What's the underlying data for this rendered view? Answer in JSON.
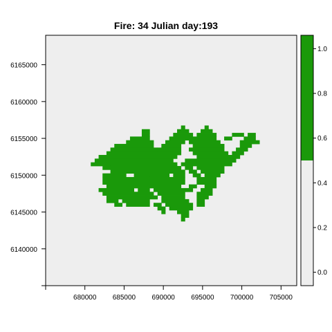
{
  "chart_data": {
    "type": "heatmap",
    "title": "Fire: 34   Julian day:193",
    "xlabel": "",
    "ylabel": "",
    "xlim": [
      675000,
      707000
    ],
    "ylim": [
      6135000,
      6169000
    ],
    "x_ticks": [
      680000,
      685000,
      690000,
      695000,
      700000,
      705000
    ],
    "y_ticks": [
      6140000,
      6145000,
      6150000,
      6155000,
      6160000,
      6165000
    ],
    "cell_size": 500,
    "burned_value": 1,
    "background_value": 0,
    "burned_cells_x_ranges_by_row": [
      {
        "y": 6156500,
        "ranges": [
          [
            692500,
            692500
          ],
          [
            695500,
            695500
          ]
        ]
      },
      {
        "y": 6156000,
        "ranges": [
          [
            687500,
            688000
          ],
          [
            692000,
            693000
          ],
          [
            695000,
            696000
          ]
        ]
      },
      {
        "y": 6155500,
        "ranges": [
          [
            687500,
            688000
          ],
          [
            691500,
            693500
          ],
          [
            694500,
            696500
          ],
          [
            699000,
            700000
          ],
          [
            701000,
            701500
          ]
        ]
      },
      {
        "y": 6155000,
        "ranges": [
          [
            686000,
            688000
          ],
          [
            691000,
            693000
          ],
          [
            693500,
            696500
          ],
          [
            698000,
            698500
          ],
          [
            700500,
            701500
          ]
        ]
      },
      {
        "y": 6154500,
        "ranges": [
          [
            685500,
            688500
          ],
          [
            690500,
            692500
          ],
          [
            693500,
            694500
          ],
          [
            695000,
            697000
          ],
          [
            700000,
            702000
          ]
        ]
      },
      {
        "y": 6154000,
        "ranges": [
          [
            684000,
            688500
          ],
          [
            690000,
            692000
          ],
          [
            694000,
            697500
          ],
          [
            700000,
            701000
          ]
        ]
      },
      {
        "y": 6153500,
        "ranges": [
          [
            683500,
            689000
          ],
          [
            689500,
            692000
          ],
          [
            693500,
            697500
          ],
          [
            699500,
            700500
          ]
        ]
      },
      {
        "y": 6153000,
        "ranges": [
          [
            683000,
            692000
          ],
          [
            694000,
            698000
          ],
          [
            699000,
            700000
          ]
        ]
      },
      {
        "y": 6152500,
        "ranges": [
          [
            682000,
            682500
          ],
          [
            683000,
            691500
          ],
          [
            694500,
            698000
          ],
          [
            698500,
            699500
          ]
        ]
      },
      {
        "y": 6152000,
        "ranges": [
          [
            681500,
            691000
          ],
          [
            693000,
            694000
          ],
          [
            694500,
            699000
          ]
        ]
      },
      {
        "y": 6151500,
        "ranges": [
          [
            681000,
            682500
          ],
          [
            683000,
            691500
          ],
          [
            692500,
            693500
          ],
          [
            694000,
            698500
          ]
        ]
      },
      {
        "y": 6151000,
        "ranges": [
          [
            682500,
            683000
          ],
          [
            683500,
            692000
          ],
          [
            693000,
            693500
          ],
          [
            694500,
            697500
          ]
        ]
      },
      {
        "y": 6150500,
        "ranges": [
          [
            683500,
            690500
          ],
          [
            691000,
            692500
          ],
          [
            693500,
            694000
          ],
          [
            695000,
            697500
          ]
        ]
      },
      {
        "y": 6150000,
        "ranges": [
          [
            682500,
            685000
          ],
          [
            686500,
            690500
          ],
          [
            691500,
            692500
          ],
          [
            694000,
            694500
          ],
          [
            695500,
            697000
          ]
        ]
      },
      {
        "y": 6149500,
        "ranges": [
          [
            682500,
            688000
          ],
          [
            688500,
            690000
          ],
          [
            690500,
            692500
          ],
          [
            694500,
            696500
          ]
        ]
      },
      {
        "y": 6149000,
        "ranges": [
          [
            682500,
            690000
          ],
          [
            690500,
            692500
          ],
          [
            694500,
            696500
          ]
        ]
      },
      {
        "y": 6148500,
        "ranges": [
          [
            683000,
            686500
          ],
          [
            687000,
            688500
          ],
          [
            689000,
            692000
          ],
          [
            693500,
            694000
          ],
          [
            695500,
            696500
          ]
        ]
      },
      {
        "y": 6148000,
        "ranges": [
          [
            682000,
            682500
          ],
          [
            683000,
            686000
          ],
          [
            687000,
            688000
          ],
          [
            689000,
            692500
          ],
          [
            693000,
            693500
          ],
          [
            695000,
            696000
          ]
        ]
      },
      {
        "y": 6147500,
        "ranges": [
          [
            682500,
            686500
          ],
          [
            687000,
            688500
          ],
          [
            689500,
            692500
          ],
          [
            694500,
            696000
          ]
        ]
      },
      {
        "y": 6147000,
        "ranges": [
          [
            683000,
            687500
          ],
          [
            688000,
            689000
          ],
          [
            690000,
            692500
          ],
          [
            694500,
            695500
          ]
        ]
      },
      {
        "y": 6146500,
        "ranges": [
          [
            683000,
            684000
          ],
          [
            685000,
            688000
          ],
          [
            690000,
            693000
          ],
          [
            694500,
            695000
          ]
        ]
      },
      {
        "y": 6146000,
        "ranges": [
          [
            684000,
            684500
          ],
          [
            685500,
            688000
          ],
          [
            689000,
            689500
          ],
          [
            690500,
            693500
          ],
          [
            694500,
            695000
          ]
        ]
      },
      {
        "y": 6145500,
        "ranges": [
          [
            689500,
            690000
          ],
          [
            691000,
            693500
          ]
        ]
      },
      {
        "y": 6145000,
        "ranges": [
          [
            690000,
            690000
          ],
          [
            692000,
            693000
          ]
        ]
      },
      {
        "y": 6144500,
        "ranges": [
          [
            692500,
            693000
          ]
        ]
      },
      {
        "y": 6144000,
        "ranges": [
          [
            692500,
            692500
          ]
        ]
      }
    ],
    "colorbar": {
      "ticks": [
        0.0,
        0.2,
        0.4,
        0.6,
        0.8,
        1.0
      ],
      "tick_labels": [
        "0.0",
        "0.2",
        "0.4",
        "0.6",
        "0.8",
        "1.0"
      ],
      "range": [
        -0.06,
        1.06
      ],
      "split_value": 0.5
    },
    "colors": {
      "burned": "#1a990a",
      "background": "#eeeeee"
    },
    "grid": false,
    "legend": "colorbar-right"
  }
}
